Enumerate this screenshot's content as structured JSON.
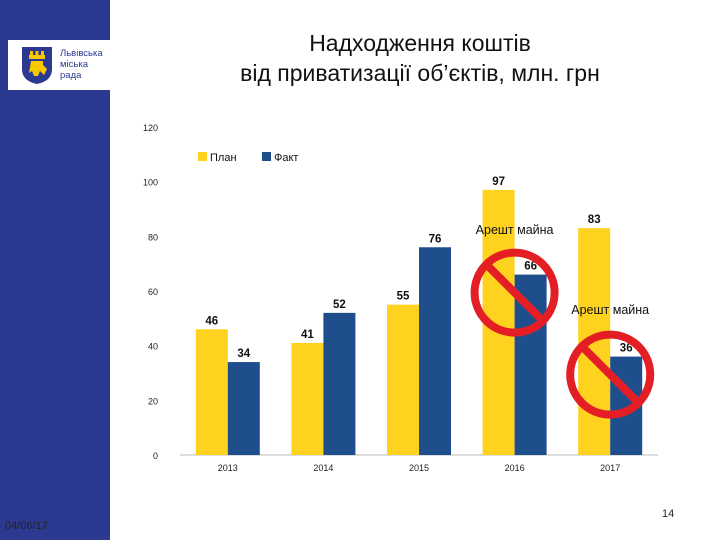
{
  "sidebar": {
    "logo": {
      "line1": "Львівська",
      "line2": "міська",
      "line3": "рада",
      "colors": {
        "shield": "#2b3990",
        "lion": "#f5c800"
      }
    }
  },
  "title": {
    "line1": "Надходження коштів",
    "line2": "від приватизації об’єктів, млн. грн"
  },
  "footer": {
    "date": "04/06/17",
    "page_number": "14"
  },
  "chart_data": {
    "type": "bar",
    "categories": [
      "2013",
      "2014",
      "2015",
      "2016",
      "2017"
    ],
    "series": [
      {
        "name": "План",
        "color": "#ffd21f",
        "values": [
          46,
          41,
          55,
          97,
          83
        ]
      },
      {
        "name": "Факт",
        "color": "#1f4e8c",
        "values": [
          34,
          52,
          76,
          66,
          36
        ]
      }
    ],
    "ylim": [
      0,
      120
    ],
    "yticks": [
      0,
      20,
      40,
      60,
      80,
      100,
      120
    ],
    "legend": "top-left",
    "annotations": [
      {
        "text": "Арешт майна",
        "category": "2016"
      },
      {
        "text": "Арешт майна",
        "category": "2017"
      }
    ],
    "prohibition_marks": [
      "2016",
      "2017"
    ]
  }
}
